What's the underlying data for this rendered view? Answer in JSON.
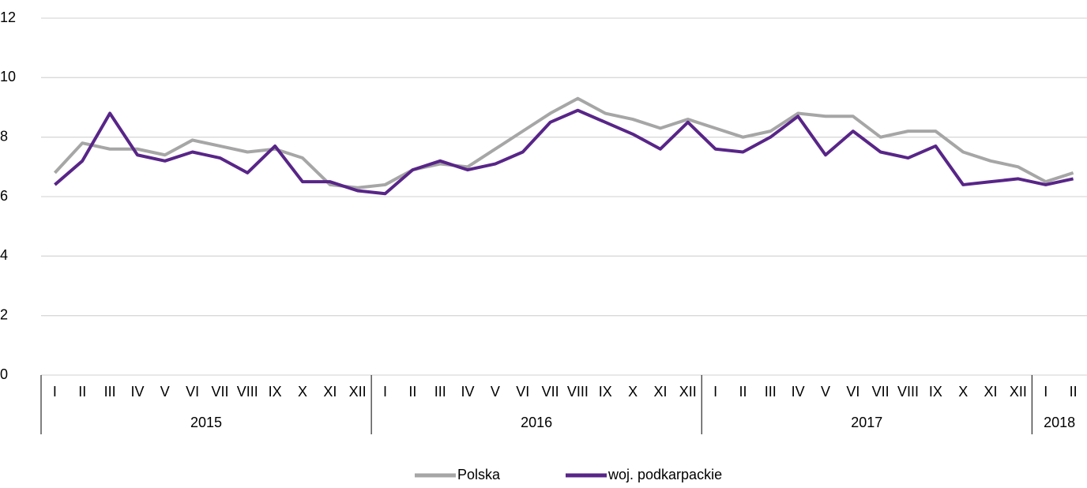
{
  "chart_data": {
    "type": "line",
    "categories": [
      "I",
      "II",
      "III",
      "IV",
      "V",
      "VI",
      "VII",
      "VIII",
      "IX",
      "X",
      "XI",
      "XII",
      "I",
      "II",
      "III",
      "IV",
      "V",
      "VI",
      "VII",
      "VIII",
      "IX",
      "X",
      "XI",
      "XII",
      "I",
      "II",
      "III",
      "IV",
      "V",
      "VI",
      "VII",
      "VIII",
      "IX",
      "X",
      "XI",
      "XII",
      "I",
      "II"
    ],
    "category_groups": [
      "2015",
      "2016",
      "2017",
      "2018"
    ],
    "series": [
      {
        "name": "Polska",
        "color": "#a6a6a6",
        "values": [
          6.8,
          7.8,
          7.6,
          7.6,
          7.4,
          7.9,
          7.7,
          7.5,
          7.6,
          7.3,
          6.4,
          6.3,
          6.4,
          6.9,
          7.1,
          7.0,
          7.6,
          8.2,
          8.8,
          9.3,
          8.8,
          8.6,
          8.3,
          8.6,
          8.3,
          8.0,
          8.2,
          8.8,
          8.7,
          8.7,
          8.0,
          8.2,
          8.2,
          7.5,
          7.2,
          7.0,
          6.5,
          6.8
        ]
      },
      {
        "name": "woj. podkarpackie",
        "color": "#582588",
        "values": [
          6.4,
          7.2,
          8.8,
          7.4,
          7.2,
          7.5,
          7.3,
          6.8,
          7.7,
          6.5,
          6.5,
          6.2,
          6.1,
          6.9,
          7.2,
          6.9,
          7.1,
          7.5,
          8.5,
          8.9,
          8.5,
          8.1,
          7.6,
          8.5,
          7.6,
          7.5,
          8.0,
          8.7,
          7.4,
          8.2,
          7.5,
          7.3,
          7.7,
          6.4,
          6.5,
          6.6,
          6.4,
          6.6
        ]
      }
    ],
    "ylim": [
      0,
      12
    ],
    "yticks": [
      0,
      2,
      4,
      6,
      8,
      10,
      12
    ],
    "grid": true,
    "legend": "bottom"
  }
}
